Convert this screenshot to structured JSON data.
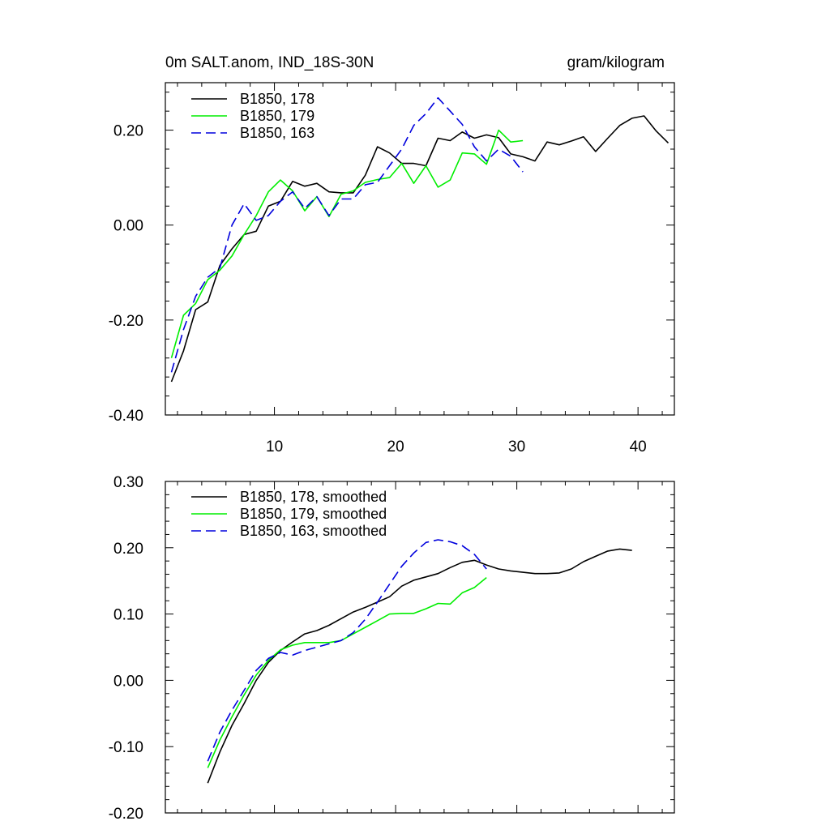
{
  "title_left": "0m SALT.anom, IND_18S-30N",
  "title_right": "gram/kilogram",
  "chart_data": [
    {
      "type": "line",
      "xlim": [
        1,
        43
      ],
      "ylim": [
        -0.4,
        0.3
      ],
      "xticks": [
        10,
        20,
        30,
        40
      ],
      "yticks": [
        -0.4,
        -0.2,
        0.0,
        0.2
      ],
      "ytick_labels": [
        "-0.40",
        "-0.20",
        "0.00",
        "0.20"
      ],
      "legend_position": "top-left",
      "series": [
        {
          "name": "B1850, 178",
          "color": "#000000",
          "dash": "solid",
          "x": [
            1.5,
            2.5,
            3.5,
            4.5,
            5.5,
            6.5,
            7.5,
            8.5,
            9.5,
            10.5,
            11.5,
            12.5,
            13.5,
            14.5,
            15.5,
            16.5,
            17.5,
            18.5,
            19.5,
            20.5,
            21.5,
            22.5,
            23.5,
            24.5,
            25.5,
            26.5,
            27.5,
            28.5,
            29.5,
            30.5,
            31.5,
            32.5,
            33.5,
            34.5,
            35.5,
            36.5,
            37.5,
            38.5,
            39.5,
            40.5,
            41.5,
            42.5
          ],
          "values": [
            -0.33,
            -0.265,
            -0.178,
            -0.162,
            -0.085,
            -0.05,
            -0.02,
            -0.013,
            0.04,
            0.05,
            0.092,
            0.082,
            0.088,
            0.07,
            0.068,
            0.068,
            0.105,
            0.165,
            0.152,
            0.13,
            0.13,
            0.125,
            0.183,
            0.178,
            0.196,
            0.183,
            0.19,
            0.184,
            0.15,
            0.144,
            0.135,
            0.175,
            0.169,
            0.177,
            0.186,
            0.155,
            0.183,
            0.21,
            0.225,
            0.23,
            0.198,
            0.173
          ]
        },
        {
          "name": "B1850, 179",
          "color": "#00ee00",
          "dash": "solid",
          "x": [
            1.5,
            2.5,
            3.5,
            4.5,
            5.5,
            6.5,
            7.5,
            8.5,
            9.5,
            10.5,
            11.5,
            12.5,
            13.5,
            14.5,
            15.5,
            16.5,
            17.5,
            18.5,
            19.5,
            20.5,
            21.5,
            22.5,
            23.5,
            24.5,
            25.5,
            26.5,
            27.5,
            28.5,
            29.5,
            30.5
          ],
          "values": [
            -0.28,
            -0.19,
            -0.165,
            -0.115,
            -0.095,
            -0.065,
            -0.02,
            0.02,
            0.07,
            0.095,
            0.072,
            0.03,
            0.06,
            0.018,
            0.065,
            0.072,
            0.09,
            0.096,
            0.1,
            0.13,
            0.088,
            0.125,
            0.08,
            0.095,
            0.152,
            0.15,
            0.128,
            0.2,
            0.175,
            0.178
          ]
        },
        {
          "name": "B1850, 163",
          "color": "#0000dd",
          "dash": "dashed",
          "x": [
            1.5,
            2.5,
            3.5,
            4.5,
            5.5,
            6.5,
            7.5,
            8.5,
            9.5,
            10.5,
            11.5,
            12.5,
            13.5,
            14.5,
            15.5,
            16.5,
            17.5,
            18.5,
            19.5,
            20.5,
            21.5,
            22.5,
            23.5,
            24.5,
            25.5,
            26.5,
            27.5,
            28.5,
            29.5,
            30.5
          ],
          "values": [
            -0.31,
            -0.22,
            -0.15,
            -0.11,
            -0.09,
            0.0,
            0.045,
            0.01,
            0.02,
            0.05,
            0.07,
            0.035,
            0.06,
            0.02,
            0.055,
            0.055,
            0.085,
            0.09,
            0.125,
            0.16,
            0.21,
            0.235,
            0.268,
            0.24,
            0.212,
            0.165,
            0.135,
            0.16,
            0.145,
            0.112
          ]
        }
      ]
    },
    {
      "type": "line",
      "xlim": [
        1,
        43
      ],
      "ylim": [
        -0.2,
        0.3
      ],
      "xticks": [
        10,
        20,
        30,
        40
      ],
      "yticks": [
        -0.2,
        -0.1,
        0.0,
        0.1,
        0.2,
        0.3
      ],
      "ytick_labels": [
        "-0.20",
        "-0.10",
        "0.00",
        "0.10",
        "0.20",
        "0.30"
      ],
      "legend_position": "top-left",
      "series": [
        {
          "name": "B1850, 178, smoothed",
          "color": "#000000",
          "dash": "solid",
          "x": [
            4.5,
            5.5,
            6.5,
            7.5,
            8.5,
            9.5,
            10.5,
            11.5,
            12.5,
            13.5,
            14.5,
            15.5,
            16.5,
            17.5,
            18.5,
            19.5,
            20.5,
            21.5,
            22.5,
            23.5,
            24.5,
            25.5,
            26.5,
            27.5,
            28.5,
            29.5,
            30.5,
            31.5,
            32.5,
            33.5,
            34.5,
            35.5,
            36.5,
            37.5,
            38.5,
            39.5
          ],
          "values": [
            -0.155,
            -0.108,
            -0.068,
            -0.035,
            0.0,
            0.027,
            0.045,
            0.058,
            0.07,
            0.075,
            0.083,
            0.093,
            0.103,
            0.11,
            0.118,
            0.126,
            0.142,
            0.151,
            0.156,
            0.161,
            0.17,
            0.178,
            0.181,
            0.174,
            0.168,
            0.165,
            0.163,
            0.161,
            0.161,
            0.162,
            0.168,
            0.179,
            0.187,
            0.195,
            0.198,
            0.196
          ]
        },
        {
          "name": "B1850, 179, smoothed",
          "color": "#00ee00",
          "dash": "solid",
          "x": [
            4.5,
            5.5,
            6.5,
            7.5,
            8.5,
            9.5,
            10.5,
            11.5,
            12.5,
            13.5,
            14.5,
            15.5,
            16.5,
            17.5,
            18.5,
            19.5,
            20.5,
            21.5,
            22.5,
            23.5,
            24.5,
            25.5,
            26.5,
            27.5
          ],
          "values": [
            -0.132,
            -0.09,
            -0.055,
            -0.022,
            0.008,
            0.03,
            0.046,
            0.053,
            0.057,
            0.057,
            0.057,
            0.06,
            0.07,
            0.08,
            0.09,
            0.1,
            0.101,
            0.101,
            0.108,
            0.116,
            0.115,
            0.132,
            0.14,
            0.155
          ]
        },
        {
          "name": "B1850, 163, smoothed",
          "color": "#0000dd",
          "dash": "dashed",
          "x": [
            4.5,
            5.5,
            6.5,
            7.5,
            8.5,
            9.5,
            10.5,
            11.5,
            12.5,
            13.5,
            14.5,
            15.5,
            16.5,
            17.5,
            18.5,
            19.5,
            20.5,
            21.5,
            22.5,
            23.5,
            24.5,
            25.5,
            26.5,
            27.5
          ],
          "values": [
            -0.122,
            -0.078,
            -0.045,
            -0.015,
            0.015,
            0.033,
            0.042,
            0.038,
            0.045,
            0.05,
            0.055,
            0.06,
            0.072,
            0.092,
            0.118,
            0.145,
            0.172,
            0.192,
            0.208,
            0.212,
            0.209,
            0.203,
            0.19,
            0.168
          ]
        }
      ]
    }
  ]
}
